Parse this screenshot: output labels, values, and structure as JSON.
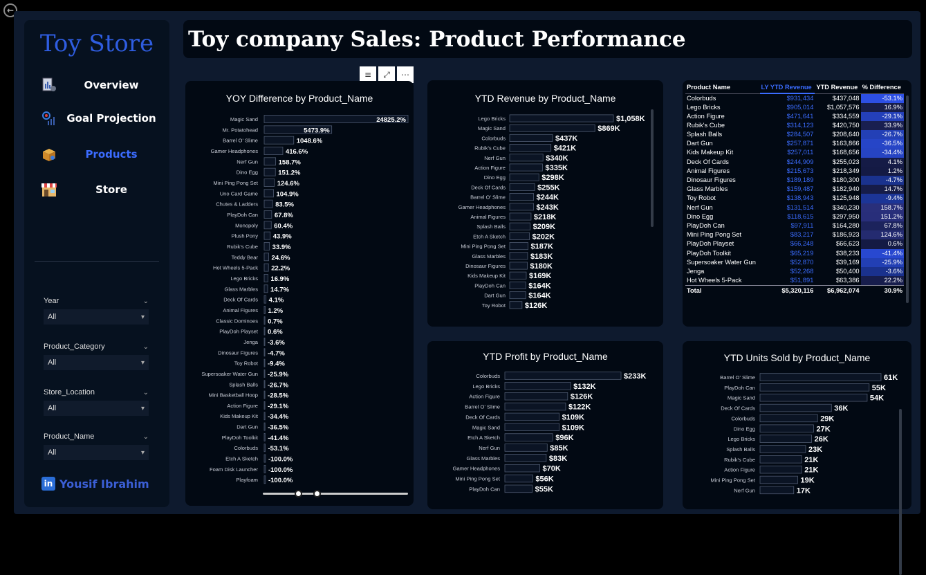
{
  "app": {
    "brand": "Toy Store",
    "page_title": "Toy company Sales: Product Performance",
    "author": "Yousif Ibrahim",
    "author_icon": "linkedin-icon",
    "accent": "#3b6cff"
  },
  "nav": [
    {
      "label": "Overview",
      "icon": "document-chart-icon",
      "active": false
    },
    {
      "label": "Goal Projection",
      "icon": "target-chart-icon",
      "active": false
    },
    {
      "label": "Products",
      "icon": "box-icon",
      "active": true
    },
    {
      "label": "Store",
      "icon": "storefront-icon",
      "active": false
    }
  ],
  "slicers": [
    {
      "label": "Year",
      "value": "All"
    },
    {
      "label": "Product_Category",
      "value": "All"
    },
    {
      "label": "Store_Location",
      "value": "All"
    },
    {
      "label": "Product_Name",
      "value": "All"
    }
  ],
  "chart_data": [
    {
      "type": "bar",
      "orientation": "horizontal",
      "title": "YOY Difference by Product_Name",
      "categories": [
        "Magic Sand",
        "Mr. Potatohead",
        "Barrel O' Slime",
        "Gamer Headphones",
        "Nerf Gun",
        "Dino Egg",
        "Mini Ping Pong Set",
        "Uno Card Game",
        "Chutes & Ladders",
        "PlayDoh Can",
        "Monopoly",
        "Plush Pony",
        "Rubik's Cube",
        "Teddy Bear",
        "Hot Wheels 5-Pack",
        "Lego Bricks",
        "Glass Marbles",
        "Deck Of Cards",
        "Animal Figures",
        "Classic Dominoes",
        "PlayDoh Playset",
        "Jenga",
        "Dinosaur Figures",
        "Toy Robot",
        "Supersoaker Water Gun",
        "Splash Balls",
        "Mini Basketball Hoop",
        "Action Figure",
        "Kids Makeup Kit",
        "Dart Gun",
        "PlayDoh Toolkit",
        "Colorbuds",
        "Etch A Sketch",
        "Foam Disk Launcher",
        "Playfoam"
      ],
      "values": [
        24825.2,
        5473.9,
        1048.6,
        416.6,
        158.7,
        151.2,
        124.6,
        104.9,
        83.5,
        67.8,
        60.4,
        43.9,
        33.9,
        24.6,
        22.2,
        16.9,
        14.7,
        4.1,
        1.2,
        0.7,
        0.6,
        -3.6,
        -4.7,
        -9.4,
        -25.9,
        -26.7,
        -28.5,
        -29.1,
        -34.4,
        -36.5,
        -41.4,
        -53.1,
        -100.0,
        -100.0,
        -100.0
      ],
      "labels": [
        "24825.2%",
        "5473.9%",
        "1048.6%",
        "416.6%",
        "158.7%",
        "151.2%",
        "124.6%",
        "104.9%",
        "83.5%",
        "67.8%",
        "60.4%",
        "43.9%",
        "33.9%",
        "24.6%",
        "22.2%",
        "16.9%",
        "14.7%",
        "4.1%",
        "1.2%",
        "0.7%",
        "0.6%",
        "-3.6%",
        "-4.7%",
        "-9.4%",
        "-25.9%",
        "-26.7%",
        "-28.5%",
        "-29.1%",
        "-34.4%",
        "-36.5%",
        "-41.4%",
        "-53.1%",
        "-100.0%",
        "-100.0%",
        "-100.0%"
      ],
      "scale": "nonlinear (sqrt-like)"
    },
    {
      "type": "bar",
      "orientation": "horizontal",
      "title": "YTD Revenue by Product_Name",
      "categories": [
        "Lego Bricks",
        "Magic Sand",
        "Colorbuds",
        "Rubik's Cube",
        "Nerf Gun",
        "Action Figure",
        "Dino Egg",
        "Deck Of Cards",
        "Barrel O' Slime",
        "Gamer Headphones",
        "Animal Figures",
        "Splash Balls",
        "Etch A Sketch",
        "Mini Ping Pong Set",
        "Glass Marbles",
        "Dinosaur Figures",
        "Kids Makeup Kit",
        "PlayDoh Can",
        "Dart Gun",
        "Toy Robot"
      ],
      "values": [
        1058,
        869,
        437,
        421,
        340,
        335,
        298,
        255,
        244,
        243,
        218,
        209,
        202,
        187,
        183,
        180,
        169,
        164,
        164,
        126
      ],
      "labels": [
        "$1,058K",
        "$869K",
        "$437K",
        "$421K",
        "$340K",
        "$335K",
        "$298K",
        "$255K",
        "$244K",
        "$243K",
        "$218K",
        "$209K",
        "$202K",
        "$187K",
        "$183K",
        "$180K",
        "$169K",
        "$164K",
        "$164K",
        "$126K"
      ]
    },
    {
      "type": "bar",
      "orientation": "horizontal",
      "title": "YTD Profit by Product_Name",
      "categories": [
        "Colorbuds",
        "Lego Bricks",
        "Action Figure",
        "Barrel O' Slime",
        "Deck Of Cards",
        "Magic Sand",
        "Etch A Sketch",
        "Nerf Gun",
        "Glass Marbles",
        "Gamer Headphones",
        "Mini Ping Pong Set",
        "PlayDoh Can"
      ],
      "values": [
        233,
        132,
        126,
        122,
        109,
        109,
        96,
        85,
        83,
        70,
        56,
        55
      ],
      "labels": [
        "$233K",
        "$132K",
        "$126K",
        "$122K",
        "$109K",
        "$109K",
        "$96K",
        "$85K",
        "$83K",
        "$70K",
        "$56K",
        "$55K"
      ]
    },
    {
      "type": "bar",
      "orientation": "horizontal",
      "title": "YTD Units Sold by Product_Name",
      "categories": [
        "Barrel O' Slime",
        "PlayDoh Can",
        "Magic Sand",
        "Deck Of Cards",
        "Colorbuds",
        "Dino Egg",
        "Lego Bricks",
        "Splash Balls",
        "Rubik's Cube",
        "Action Figure",
        "Mini Ping Pong Set",
        "Nerf Gun"
      ],
      "values": [
        61,
        55,
        54,
        36,
        29,
        27,
        26,
        23,
        21,
        21,
        19,
        17
      ],
      "labels": [
        "61K",
        "55K",
        "54K",
        "36K",
        "29K",
        "27K",
        "26K",
        "23K",
        "21K",
        "21K",
        "19K",
        "17K"
      ]
    },
    {
      "type": "table",
      "title": "",
      "columns": [
        "Product Name",
        "LY YTD Revenue",
        "YTD Revenue",
        "% Difference"
      ],
      "rows": [
        [
          "Colorbuds",
          "$931,434",
          "$437,048",
          "-53.1%"
        ],
        [
          "Lego Bricks",
          "$905,014",
          "$1,057,576",
          "16.9%"
        ],
        [
          "Action Figure",
          "$471,641",
          "$334,559",
          "-29.1%"
        ],
        [
          "Rubik's Cube",
          "$314,123",
          "$420,750",
          "33.9%"
        ],
        [
          "Splash Balls",
          "$284,507",
          "$208,640",
          "-26.7%"
        ],
        [
          "Dart Gun",
          "$257,871",
          "$163,866",
          "-36.5%"
        ],
        [
          "Kids Makeup Kit",
          "$257,011",
          "$168,656",
          "-34.4%"
        ],
        [
          "Deck Of Cards",
          "$244,909",
          "$255,023",
          "4.1%"
        ],
        [
          "Animal Figures",
          "$215,673",
          "$218,349",
          "1.2%"
        ],
        [
          "Dinosaur Figures",
          "$189,189",
          "$180,300",
          "-4.7%"
        ],
        [
          "Glass Marbles",
          "$159,487",
          "$182,940",
          "14.7%"
        ],
        [
          "Toy Robot",
          "$138,943",
          "$125,948",
          "-9.4%"
        ],
        [
          "Nerf Gun",
          "$131,514",
          "$340,230",
          "158.7%"
        ],
        [
          "Dino Egg",
          "$118,615",
          "$297,950",
          "151.2%"
        ],
        [
          "PlayDoh Can",
          "$97,911",
          "$164,280",
          "67.8%"
        ],
        [
          "Mini Ping Pong Set",
          "$83,217",
          "$186,923",
          "124.6%"
        ],
        [
          "PlayDoh Playset",
          "$66,248",
          "$66,623",
          "0.6%"
        ],
        [
          "PlayDoh Toolkit",
          "$65,219",
          "$38,233",
          "-41.4%"
        ],
        [
          "Supersoaker Water Gun",
          "$52,870",
          "$39,169",
          "-25.9%"
        ],
        [
          "Jenga",
          "$52,268",
          "$50,400",
          "-3.6%"
        ],
        [
          "Hot Wheels 5-Pack",
          "$51,891",
          "$63,386",
          "22.2%"
        ]
      ],
      "total": [
        "Total",
        "$5,320,116",
        "$6,962,074",
        "30.9%"
      ],
      "pct_values": [
        -53.1,
        16.9,
        -29.1,
        33.9,
        -26.7,
        -36.5,
        -34.4,
        4.1,
        1.2,
        -4.7,
        14.7,
        -9.4,
        158.7,
        151.2,
        67.8,
        124.6,
        0.6,
        -41.4,
        -25.9,
        -3.6,
        22.2
      ]
    }
  ]
}
